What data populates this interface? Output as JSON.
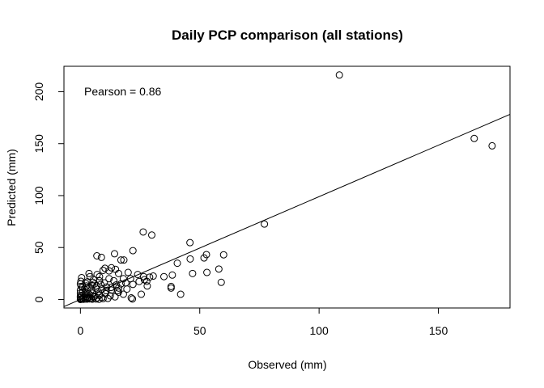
{
  "chart_data": {
    "type": "scatter",
    "title": "Daily PCP comparison (all stations)",
    "xlabel": "Observed (mm)",
    "ylabel": "Predicted (mm)",
    "annotation": "Pearson = 0.86",
    "xlim": [
      -6.9,
      180
    ],
    "ylim": [
      -8.2,
      224.5
    ],
    "xticks": [
      0,
      50,
      100,
      150
    ],
    "yticks": [
      0,
      50,
      100,
      150,
      200
    ],
    "grid": false,
    "legend": "none",
    "marker": "open-circle",
    "fit_line": {
      "slope": 0.99,
      "intercept": 0
    },
    "points": [
      [
        108.5,
        216.1
      ],
      [
        165.0,
        155.0
      ],
      [
        172.5,
        147.9
      ],
      [
        77.1,
        72.6
      ],
      [
        26.3,
        65.0
      ],
      [
        29.9,
        62.0
      ],
      [
        45.9,
        54.7
      ],
      [
        60.0,
        43.0
      ],
      [
        52.8,
        43.2
      ],
      [
        51.8,
        40.0
      ],
      [
        46.0,
        39.0
      ],
      [
        40.6,
        34.9
      ],
      [
        58.0,
        29.3
      ],
      [
        59.0,
        16.5
      ],
      [
        42.0,
        5.0
      ],
      [
        47.0,
        25.0
      ],
      [
        53.0,
        26.0
      ],
      [
        38.5,
        23.5
      ],
      [
        35.0,
        22.0
      ],
      [
        38.0,
        12.5
      ],
      [
        38.0,
        11.0
      ],
      [
        30.5,
        22.5
      ],
      [
        29.0,
        21.5
      ],
      [
        22.0,
        47.0
      ],
      [
        14.3,
        44.0
      ],
      [
        6.9,
        42.0
      ],
      [
        8.8,
        40.5
      ],
      [
        17.0,
        38.0
      ],
      [
        18.2,
        38.0
      ],
      [
        13.0,
        30.5
      ],
      [
        10.3,
        30.0
      ],
      [
        14.7,
        29.0
      ],
      [
        12.0,
        27.5
      ],
      [
        9.5,
        28.0
      ],
      [
        16.0,
        25.0
      ],
      [
        20.0,
        26.0
      ],
      [
        24.0,
        24.0
      ],
      [
        26.5,
        22.0
      ],
      [
        26.8,
        19.0
      ],
      [
        27.8,
        17.5
      ],
      [
        24.6,
        17.3
      ],
      [
        22.0,
        14.5
      ],
      [
        21.0,
        20.0
      ],
      [
        19.5,
        10.0
      ],
      [
        16.0,
        7.0
      ],
      [
        18.0,
        5.0
      ],
      [
        21.3,
        1.5
      ],
      [
        21.8,
        0.5
      ],
      [
        25.5,
        5.0
      ],
      [
        28.0,
        13.0
      ],
      [
        3.6,
        25.0
      ],
      [
        4.0,
        22.0
      ],
      [
        7.0,
        24.0
      ],
      [
        5.5,
        19.0
      ],
      [
        3.0,
        17.0
      ],
      [
        0.5,
        21.0
      ],
      [
        0.0,
        15.0
      ],
      [
        1.0,
        12.0
      ],
      [
        2.5,
        13.0
      ],
      [
        6.0,
        15.0
      ],
      [
        8.0,
        18.0
      ],
      [
        10.0,
        16.0
      ],
      [
        12.0,
        20.0
      ],
      [
        14.0,
        18.0
      ],
      [
        15.0,
        14.0
      ],
      [
        11.0,
        12.0
      ],
      [
        9.0,
        10.0
      ],
      [
        13.0,
        9.0
      ],
      [
        17.0,
        15.0
      ],
      [
        18.0,
        20.0
      ],
      [
        16.0,
        11.0
      ],
      [
        19.0,
        16.0
      ],
      [
        8.0,
        22.0
      ],
      [
        6.5,
        11.0
      ],
      [
        4.5,
        9.0
      ],
      [
        3.0,
        7.0
      ],
      [
        5.0,
        6.0
      ],
      [
        7.5,
        7.5
      ],
      [
        10.5,
        5.5
      ],
      [
        12.5,
        3.5
      ],
      [
        14.5,
        2.5
      ],
      [
        11.5,
        1.0
      ],
      [
        9.0,
        2.0
      ],
      [
        8.0,
        4.0
      ],
      [
        6.0,
        3.0
      ],
      [
        4.0,
        4.5
      ],
      [
        2.0,
        5.0
      ],
      [
        1.0,
        7.0
      ],
      [
        0.0,
        9.0
      ],
      [
        0.0,
        6.0
      ],
      [
        0.5,
        4.0
      ],
      [
        1.5,
        2.5
      ],
      [
        3.0,
        1.5
      ],
      [
        4.5,
        1.0
      ],
      [
        6.5,
        0.5
      ],
      [
        2.0,
        0.5
      ],
      [
        0.0,
        3.0
      ],
      [
        0.0,
        1.5
      ],
      [
        0.5,
        0.5
      ],
      [
        1.0,
        1.5
      ],
      [
        2.5,
        3.0
      ],
      [
        3.5,
        2.0
      ],
      [
        5.5,
        2.5
      ],
      [
        7.0,
        1.5
      ],
      [
        9.5,
        0.8
      ],
      [
        1.8,
        10.0
      ],
      [
        3.2,
        11.5
      ],
      [
        4.8,
        13.5
      ],
      [
        0.2,
        17.5
      ],
      [
        0.3,
        12.5
      ],
      [
        2.2,
        15.5
      ],
      [
        5.2,
        16.5
      ],
      [
        6.8,
        13.0
      ],
      [
        8.5,
        14.5
      ],
      [
        10.8,
        8.5
      ],
      [
        12.8,
        11.5
      ],
      [
        15.5,
        8.5
      ],
      [
        0.0,
        0.0
      ],
      [
        0.3,
        0.3
      ],
      [
        1.2,
        0.2
      ],
      [
        2.8,
        0.4
      ],
      [
        3.8,
        0.6
      ],
      [
        5.0,
        0.3
      ],
      [
        7.8,
        0.2
      ]
    ]
  }
}
